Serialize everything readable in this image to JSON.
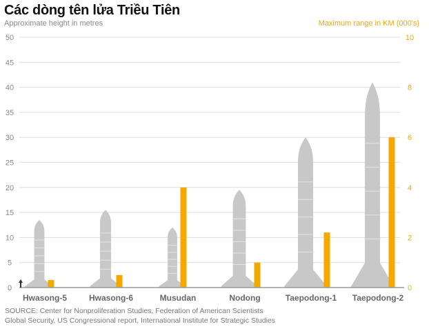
{
  "chart_data": {
    "type": "bar",
    "title": "Các dòng tên lửa Triều Tiên",
    "ylabel": "Approximate height in metres",
    "y2label": "Maximum range in KM (000's)",
    "ylim": [
      0,
      50
    ],
    "y2lim": [
      0,
      10
    ],
    "yticks": [
      "0",
      "5",
      "10",
      "15",
      "20",
      "25",
      "30",
      "35",
      "40",
      "45",
      "50"
    ],
    "y2ticks": [
      "0",
      "2",
      "4",
      "6",
      "8",
      "10"
    ],
    "grid": true,
    "categories": [
      "Hwasong-5",
      "Hwasong-6",
      "Musudan",
      "Nodong",
      "Taepodong-1",
      "Taepodong-2"
    ],
    "series": [
      {
        "name": "Approximate height in metres",
        "axis": "left",
        "mark": "rocket-silhouette",
        "color": "#c8c8c8",
        "values": [
          13.5,
          15.5,
          12,
          19.5,
          30,
          41
        ]
      },
      {
        "name": "Maximum range in KM (000's)",
        "axis": "right",
        "mark": "bar",
        "color": "#f5a800",
        "values": [
          0.3,
          0.5,
          4.0,
          1.0,
          2.2,
          6.0
        ]
      }
    ]
  },
  "source": {
    "line1": "SOURCE: Center for Nonproliferation Studies, Federation of American Scientists",
    "line2": "Global Security, US Congressional report, International Institute for Strategic Studies"
  },
  "colors": {
    "range": "#f5a800",
    "rocket": "#c8c8c8",
    "grid": "#dddddd",
    "axis_right": "#f0a800"
  }
}
